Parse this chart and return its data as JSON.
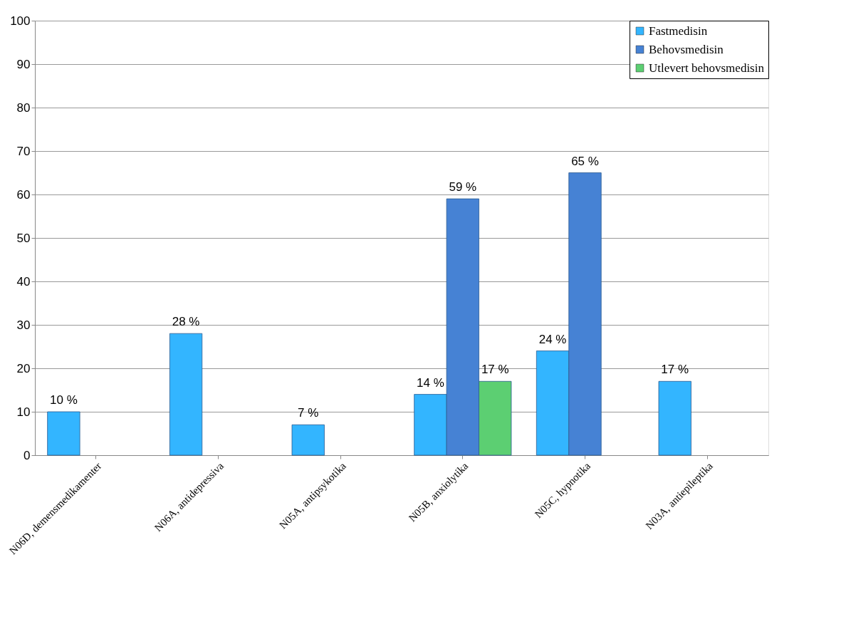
{
  "chart_data": {
    "type": "bar",
    "categories": [
      "N06D, demensmedikamenter",
      "N06A, antidepressiva",
      "N05A, antipsykotika",
      "N05B, anxiolytika",
      "N05C, hypnotika",
      "N03A, antiepileptika"
    ],
    "series": [
      {
        "name": "Fastmedisin",
        "color": "#33b5ff",
        "values": [
          10,
          28,
          7,
          14,
          24,
          17
        ],
        "value_labels": [
          "10 %",
          "28 %",
          "7 %",
          "14 %",
          "24 %",
          "17 %"
        ]
      },
      {
        "name": "Behovsmedisin",
        "color": "#4682d4",
        "values": [
          null,
          null,
          null,
          59,
          65,
          null
        ],
        "value_labels": [
          null,
          null,
          null,
          "59 %",
          "65 %",
          null
        ]
      },
      {
        "name": "Utlevert behovsmedisin",
        "color": "#5ccf72",
        "values": [
          null,
          null,
          null,
          17,
          null,
          null
        ],
        "value_labels": [
          null,
          null,
          null,
          "17 %",
          null,
          null
        ]
      }
    ],
    "ylim": [
      0,
      100
    ],
    "yticks": [
      0,
      10,
      20,
      30,
      40,
      50,
      60,
      70,
      80,
      90,
      100
    ],
    "grid": "y",
    "legend": "top right"
  }
}
